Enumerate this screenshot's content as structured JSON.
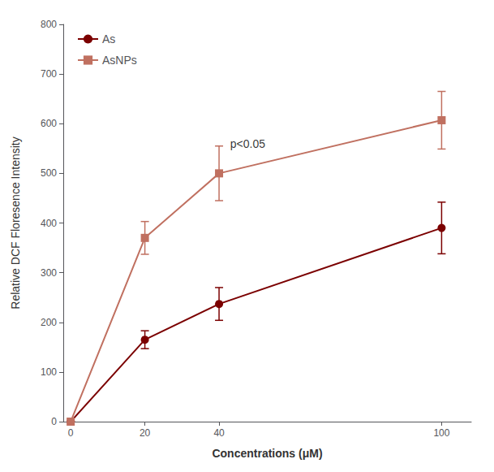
{
  "chart_data": {
    "type": "line",
    "x": [
      0,
      20,
      40,
      100
    ],
    "series": [
      {
        "name": "As",
        "color": "#7B0000",
        "marker": "circle",
        "values": [
          0,
          165,
          237,
          390
        ],
        "yerr": [
          0,
          18,
          33,
          52
        ]
      },
      {
        "name": "AsNPs",
        "color": "#C07060",
        "marker": "square",
        "values": [
          0,
          370,
          500,
          607
        ],
        "yerr": [
          0,
          33,
          55,
          58
        ]
      }
    ],
    "xlabel": "Concentrations (μM)",
    "ylabel": "Relative DCF Floresence Intensity",
    "xlim": [
      -2,
      108
    ],
    "ylim": [
      0,
      800
    ],
    "xticks": [
      0,
      20,
      40,
      100
    ],
    "yticks": [
      0,
      100,
      200,
      300,
      400,
      500,
      600,
      700,
      800
    ],
    "annotations": [
      {
        "text": "p<0.05",
        "x": 43,
        "y": 560
      }
    ],
    "legend": "upper left",
    "grid": false
  }
}
